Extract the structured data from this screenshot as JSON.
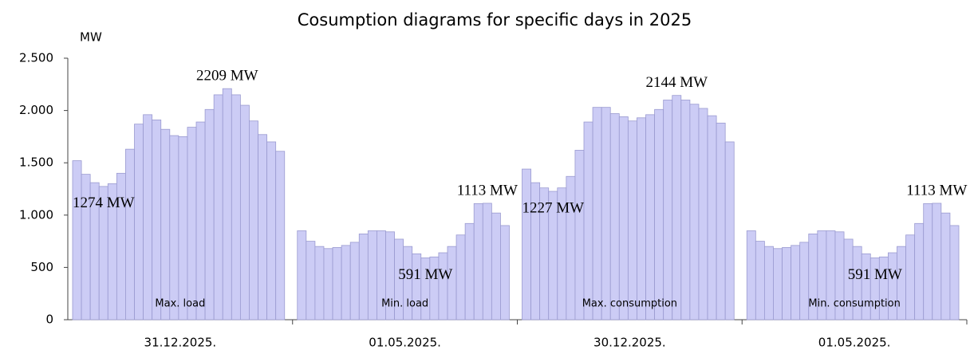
{
  "chart_data": {
    "type": "grouped-hourly-bar",
    "title": "Cosumption diagrams for specific days in 2025",
    "y_label": "MW",
    "ylim": [
      0,
      2500
    ],
    "yticks": [
      0,
      500,
      {
        "value": 1000,
        "label": "1.000"
      },
      {
        "value": 1500,
        "label": "1.500"
      },
      {
        "value": 2000,
        "label": "2.000"
      },
      {
        "value": 2500,
        "label": "2.500"
      }
    ],
    "color": "#ccccf5",
    "groups": [
      {
        "label": "31.12.2025.",
        "caption": "Max. load",
        "values": [
          1520,
          1390,
          1310,
          1274,
          1300,
          1400,
          1630,
          1870,
          1960,
          1910,
          1820,
          1760,
          1750,
          1840,
          1890,
          2010,
          2150,
          2209,
          2150,
          2050,
          1900,
          1770,
          1700,
          1610
        ],
        "value_labels": [
          null,
          null,
          null,
          "1274 MW",
          null,
          null,
          null,
          null,
          null,
          null,
          null,
          null,
          null,
          null,
          null,
          null,
          null,
          "2209 MW",
          null,
          null,
          null,
          null,
          null,
          null
        ]
      },
      {
        "label": "01.05.2025.",
        "caption": "Min. load",
        "values": [
          850,
          750,
          700,
          680,
          690,
          710,
          740,
          820,
          850,
          850,
          840,
          770,
          700,
          630,
          591,
          600,
          640,
          700,
          810,
          920,
          1110,
          1113,
          1020,
          900
        ],
        "value_labels": [
          null,
          null,
          null,
          null,
          null,
          null,
          null,
          null,
          null,
          null,
          null,
          null,
          null,
          null,
          "591 MW",
          null,
          null,
          null,
          null,
          null,
          null,
          "1113 MW",
          null,
          null
        ]
      },
      {
        "label": "30.12.2025.",
        "caption": "Max. consumption",
        "values": [
          1440,
          1310,
          1260,
          1227,
          1260,
          1370,
          1620,
          1890,
          2030,
          2030,
          1970,
          1940,
          1900,
          1930,
          1960,
          2010,
          2100,
          2144,
          2100,
          2060,
          2020,
          1950,
          1880,
          1700
        ],
        "value_labels": [
          null,
          null,
          null,
          "1227 MW",
          null,
          null,
          null,
          null,
          null,
          null,
          null,
          null,
          null,
          null,
          null,
          null,
          null,
          "2144 MW",
          null,
          null,
          null,
          null,
          null,
          null
        ]
      },
      {
        "label": "01.05.2025.",
        "caption": "Min. consumption",
        "values": [
          850,
          750,
          700,
          680,
          690,
          710,
          740,
          820,
          850,
          850,
          840,
          770,
          700,
          630,
          591,
          600,
          640,
          700,
          810,
          920,
          1110,
          1113,
          1020,
          900
        ],
        "value_labels": [
          null,
          null,
          null,
          null,
          null,
          null,
          null,
          null,
          null,
          null,
          null,
          null,
          null,
          null,
          "591 MW",
          null,
          null,
          null,
          null,
          null,
          null,
          "1113 MW",
          null,
          null
        ]
      }
    ]
  }
}
